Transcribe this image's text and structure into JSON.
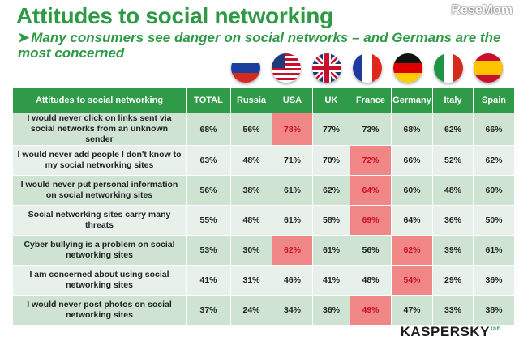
{
  "title": "Attitudes to social networking",
  "watermark": "ReseMom",
  "subtitle": "Many consumers see danger on social networks – and Germans are the most concerned",
  "flags": [
    "russia-flag-icon",
    "usa-flag-icon",
    "uk-flag-icon",
    "france-flag-icon",
    "germany-flag-icon",
    "italy-flag-icon",
    "spain-flag-icon"
  ],
  "colors": {
    "header": "#2f9a47",
    "row_dark": "#cfe3d3",
    "row_light": "#e7f0e9",
    "highlight": "#f08686",
    "title": "#2e9a45"
  },
  "chart_data": {
    "type": "table",
    "columns": [
      "Attitudes to social networking",
      "TOTAL",
      "Russia",
      "USA",
      "UK",
      "France",
      "Germany",
      "Italy",
      "Spain"
    ],
    "rows": [
      {
        "statement": "I would never click on links sent via social networks from an unknown sender",
        "values": [
          "68%",
          "56%",
          "78%",
          "77%",
          "73%",
          "68%",
          "62%",
          "66%"
        ],
        "highlight": "USA"
      },
      {
        "statement": "I would never add people I don't know to my social networking sites",
        "values": [
          "63%",
          "48%",
          "71%",
          "70%",
          "72%",
          "66%",
          "52%",
          "62%"
        ],
        "highlight": "France"
      },
      {
        "statement": "I would never put personal information on social networking sites",
        "values": [
          "56%",
          "38%",
          "61%",
          "62%",
          "64%",
          "60%",
          "48%",
          "60%"
        ],
        "highlight": "France"
      },
      {
        "statement": "Social networking sites carry many threats",
        "values": [
          "55%",
          "48%",
          "61%",
          "58%",
          "69%",
          "64%",
          "36%",
          "50%"
        ],
        "highlight": "France"
      },
      {
        "statement": "Cyber bullying is a problem on social networking sites",
        "values": [
          "53%",
          "30%",
          "62%",
          "61%",
          "56%",
          "62%",
          "39%",
          "61%"
        ],
        "highlight": [
          "USA",
          "Germany"
        ]
      },
      {
        "statement": "I am concerned about using social networking sites",
        "values": [
          "41%",
          "31%",
          "46%",
          "41%",
          "48%",
          "54%",
          "29%",
          "36%"
        ],
        "highlight": "Germany"
      },
      {
        "statement": "I would never post photos on social networking sites",
        "values": [
          "37%",
          "24%",
          "34%",
          "36%",
          "49%",
          "47%",
          "33%",
          "38%"
        ],
        "highlight": "France"
      }
    ]
  },
  "logo": {
    "name": "KASPERSKY",
    "suffix": "lab"
  }
}
